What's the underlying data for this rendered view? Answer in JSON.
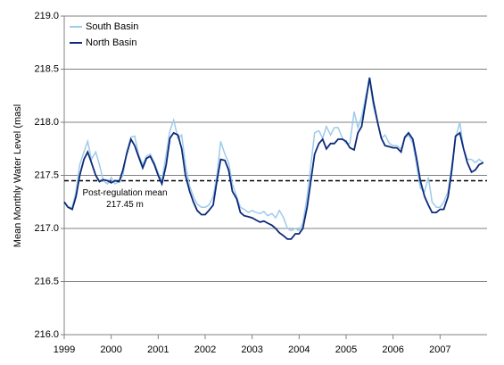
{
  "chart_data": {
    "type": "line",
    "y_label": "Mean Monthly Water Level (masl",
    "x": [
      1999,
      1999.08,
      1999.17,
      1999.25,
      1999.33,
      1999.42,
      1999.5,
      1999.58,
      1999.67,
      1999.75,
      1999.83,
      1999.92,
      2000,
      2000.08,
      2000.17,
      2000.25,
      2000.33,
      2000.42,
      2000.5,
      2000.58,
      2000.67,
      2000.75,
      2000.83,
      2000.92,
      2001,
      2001.08,
      2001.17,
      2001.25,
      2001.33,
      2001.42,
      2001.5,
      2001.58,
      2001.67,
      2001.75,
      2001.83,
      2001.92,
      2002,
      2002.08,
      2002.17,
      2002.25,
      2002.33,
      2002.42,
      2002.5,
      2002.58,
      2002.67,
      2002.75,
      2002.83,
      2002.92,
      2003,
      2003.08,
      2003.17,
      2003.25,
      2003.33,
      2003.42,
      2003.5,
      2003.58,
      2003.67,
      2003.75,
      2003.83,
      2003.92,
      2004,
      2004.08,
      2004.17,
      2004.25,
      2004.33,
      2004.42,
      2004.5,
      2004.58,
      2004.67,
      2004.75,
      2004.83,
      2004.92,
      2005,
      2005.08,
      2005.17,
      2005.25,
      2005.33,
      2005.42,
      2005.5,
      2005.58,
      2005.67,
      2005.75,
      2005.83,
      2005.92,
      2006,
      2006.08,
      2006.17,
      2006.25,
      2006.33,
      2006.42,
      2006.5,
      2006.58,
      2006.67,
      2006.75,
      2006.83,
      2006.92,
      2007,
      2007.08,
      2007.17,
      2007.25,
      2007.33,
      2007.42,
      2007.5,
      2007.58,
      2007.67,
      2007.75,
      2007.83,
      2007.92
    ],
    "series": [
      {
        "name": "South Basin",
        "color": "#9dcbea",
        "values": [
          217.25,
          217.2,
          217.2,
          217.35,
          217.6,
          217.72,
          217.82,
          217.65,
          217.72,
          217.6,
          217.45,
          217.42,
          217.48,
          217.42,
          217.44,
          217.5,
          217.72,
          217.86,
          217.87,
          217.7,
          217.6,
          217.68,
          217.7,
          217.62,
          217.52,
          217.45,
          217.7,
          217.92,
          218.02,
          217.85,
          217.88,
          217.6,
          217.4,
          217.3,
          217.23,
          217.2,
          217.2,
          217.22,
          217.3,
          217.5,
          217.82,
          217.7,
          217.62,
          217.42,
          217.3,
          217.2,
          217.18,
          217.15,
          217.17,
          217.15,
          217.14,
          217.16,
          217.12,
          217.14,
          217.1,
          217.17,
          217.1,
          217.0,
          216.98,
          217.0,
          216.98,
          217.05,
          217.3,
          217.6,
          217.9,
          217.92,
          217.85,
          217.96,
          217.88,
          217.95,
          217.95,
          217.85,
          217.8,
          217.8,
          218.1,
          217.95,
          218.05,
          218.25,
          218.4,
          218.15,
          218.0,
          217.85,
          217.88,
          217.8,
          217.78,
          217.78,
          217.75,
          217.85,
          217.88,
          217.8,
          217.6,
          217.38,
          217.35,
          217.48,
          217.25,
          217.2,
          217.2,
          217.25,
          217.35,
          217.6,
          217.85,
          218.0,
          217.75,
          217.65,
          217.65,
          217.62,
          217.65,
          217.62
        ]
      },
      {
        "name": "North Basin",
        "color": "#0c2a7a",
        "values": [
          217.25,
          217.2,
          217.18,
          217.3,
          217.5,
          217.65,
          217.72,
          217.62,
          217.5,
          217.44,
          217.46,
          217.45,
          217.43,
          217.45,
          217.44,
          217.55,
          217.7,
          217.84,
          217.78,
          217.68,
          217.57,
          217.66,
          217.68,
          217.6,
          217.5,
          217.42,
          217.6,
          217.85,
          217.9,
          217.88,
          217.75,
          217.5,
          217.35,
          217.25,
          217.17,
          217.13,
          217.13,
          217.17,
          217.22,
          217.45,
          217.65,
          217.64,
          217.55,
          217.35,
          217.28,
          217.15,
          217.12,
          217.11,
          217.1,
          217.08,
          217.06,
          217.07,
          217.05,
          217.03,
          217.0,
          216.96,
          216.93,
          216.9,
          216.9,
          216.95,
          216.95,
          217.0,
          217.2,
          217.45,
          217.7,
          217.8,
          217.84,
          217.75,
          217.8,
          217.8,
          217.84,
          217.84,
          217.82,
          217.76,
          217.74,
          217.9,
          217.96,
          218.2,
          218.42,
          218.2,
          218.0,
          217.85,
          217.78,
          217.77,
          217.76,
          217.76,
          217.72,
          217.86,
          217.9,
          217.84,
          217.66,
          217.45,
          217.3,
          217.22,
          217.15,
          217.15,
          217.18,
          217.18,
          217.3,
          217.55,
          217.87,
          217.9,
          217.75,
          217.62,
          217.53,
          217.55,
          217.6,
          217.62
        ]
      }
    ],
    "reference_line": {
      "value": 217.45,
      "label_lines": [
        "Post-regulation mean",
        "217.45 m"
      ]
    },
    "xlim": [
      1999,
      2008
    ],
    "xticks": [
      1999,
      2000,
      2001,
      2002,
      2003,
      2004,
      2005,
      2006,
      2007
    ],
    "ylim": [
      216,
      219
    ],
    "yticks": [
      {
        "value": 216,
        "label": "216.0"
      },
      {
        "value": 216.5,
        "label": "216.5"
      },
      {
        "value": 217,
        "label": "217.0"
      },
      {
        "value": 217.5,
        "label": "217.5"
      },
      {
        "value": 218,
        "label": "218.0"
      },
      {
        "value": 218.5,
        "label": "218.5"
      },
      {
        "value": 219,
        "label": "219.0"
      }
    ],
    "grid": true,
    "legend": "top-left"
  }
}
